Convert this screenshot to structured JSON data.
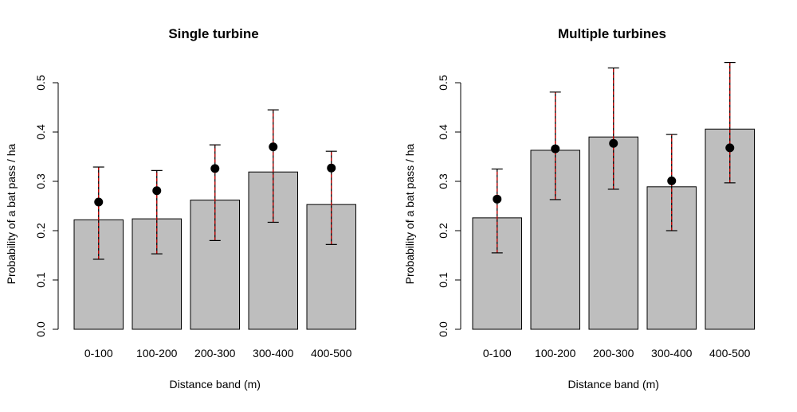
{
  "chart_data": [
    {
      "type": "bar",
      "title": "Single turbine",
      "xlabel": "Distance band (m)",
      "ylabel": "Probability of a bat pass / ha",
      "ylim": [
        0,
        0.5
      ],
      "yticks": [
        "0.0",
        "0.1",
        "0.2",
        "0.3",
        "0.4",
        "0.5"
      ],
      "categories": [
        "0-100",
        "100-200",
        "200-300",
        "300-400",
        "400-500"
      ],
      "bar_color": "#bebebe",
      "errorbar_colors": [
        "#000000",
        "#cc0000"
      ],
      "series": [
        {
          "values": [
            0.222,
            0.224,
            0.262,
            0.319,
            0.253
          ]
        },
        {
          "values": [
            0.258,
            0.281,
            0.326,
            0.37,
            0.327
          ],
          "lower": [
            0.142,
            0.153,
            0.18,
            0.217,
            0.172
          ],
          "upper": [
            0.329,
            0.322,
            0.374,
            0.445,
            0.361
          ]
        }
      ]
    },
    {
      "type": "bar",
      "title": "Multiple turbines",
      "xlabel": "Distance band (m)",
      "ylabel": "Probability of a bat pass / ha",
      "ylim": [
        0,
        0.5
      ],
      "yticks": [
        "0.0",
        "0.1",
        "0.2",
        "0.3",
        "0.4",
        "0.5"
      ],
      "categories": [
        "0-100",
        "100-200",
        "200-300",
        "300-400",
        "400-500"
      ],
      "bar_color": "#bebebe",
      "errorbar_colors": [
        "#000000",
        "#cc0000"
      ],
      "series": [
        {
          "values": [
            0.226,
            0.363,
            0.39,
            0.289,
            0.406
          ]
        },
        {
          "values": [
            0.264,
            0.366,
            0.377,
            0.301,
            0.368
          ],
          "lower": [
            0.155,
            0.263,
            0.284,
            0.2,
            0.297
          ],
          "upper": [
            0.325,
            0.481,
            0.53,
            0.395,
            0.541
          ]
        }
      ]
    }
  ]
}
